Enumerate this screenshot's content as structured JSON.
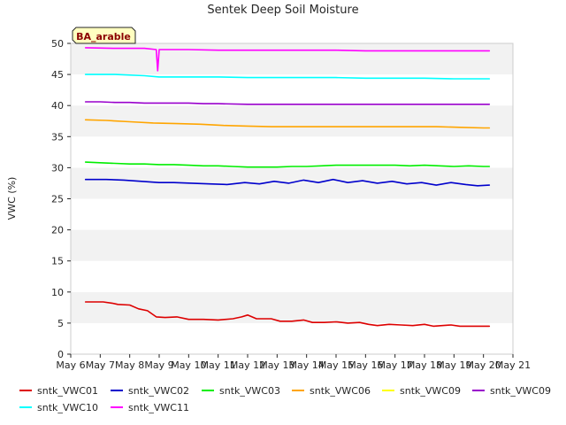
{
  "chart_data": {
    "type": "line",
    "title": "Sentek Deep Soil Moisture",
    "ylabel": "VWC (%)",
    "xlabel": "",
    "badge": "BA_arable",
    "ylim": [
      0,
      50
    ],
    "yticks": [
      0,
      5,
      10,
      15,
      20,
      25,
      30,
      35,
      40,
      45,
      50
    ],
    "xlim": [
      6,
      21
    ],
    "xticks": [
      {
        "value": 6,
        "label": "May 6"
      },
      {
        "value": 7,
        "label": "May 7"
      },
      {
        "value": 8,
        "label": "May 8"
      },
      {
        "value": 9,
        "label": "May 9"
      },
      {
        "value": 10,
        "label": "May 10"
      },
      {
        "value": 11,
        "label": "May 11"
      },
      {
        "value": 12,
        "label": "May 12"
      },
      {
        "value": 13,
        "label": "May 13"
      },
      {
        "value": 14,
        "label": "May 14"
      },
      {
        "value": 15,
        "label": "May 15"
      },
      {
        "value": 16,
        "label": "May 16"
      },
      {
        "value": 17,
        "label": "May 17"
      },
      {
        "value": 18,
        "label": "May 18"
      },
      {
        "value": 19,
        "label": "May 19"
      },
      {
        "value": 20,
        "label": "May 20"
      },
      {
        "value": 21,
        "label": "May 21"
      }
    ],
    "grid_bands": true,
    "legend_placement": "bottom",
    "series": [
      {
        "name": "sntk_VWC01",
        "color": "#dd0000",
        "x": [
          6.5,
          7.1,
          7.4,
          7.6,
          8.0,
          8.3,
          8.6,
          8.9,
          9.2,
          9.6,
          10.0,
          10.5,
          11.0,
          11.5,
          11.8,
          12.0,
          12.3,
          12.8,
          13.1,
          13.5,
          13.9,
          14.2,
          14.6,
          15.0,
          15.4,
          15.8,
          16.1,
          16.4,
          16.8,
          17.2,
          17.6,
          18.0,
          18.3,
          18.6,
          18.9,
          19.2,
          19.5,
          19.8,
          20.1,
          20.2
        ],
        "y": [
          8.4,
          8.4,
          8.2,
          8.0,
          7.9,
          7.3,
          7.0,
          6.0,
          5.9,
          6.0,
          5.6,
          5.6,
          5.5,
          5.7,
          6.0,
          6.3,
          5.7,
          5.7,
          5.3,
          5.3,
          5.5,
          5.1,
          5.1,
          5.2,
          5.0,
          5.1,
          4.8,
          4.6,
          4.8,
          4.7,
          4.6,
          4.8,
          4.5,
          4.6,
          4.7,
          4.5,
          4.5,
          4.5,
          4.5,
          4.5
        ]
      },
      {
        "name": "sntk_VWC02",
        "color": "#0000cc",
        "x": [
          6.5,
          7.2,
          7.8,
          8.4,
          9.0,
          9.5,
          10.1,
          10.7,
          11.3,
          11.9,
          12.4,
          12.9,
          13.4,
          13.9,
          14.4,
          14.9,
          15.4,
          15.9,
          16.4,
          16.9,
          17.4,
          17.9,
          18.4,
          18.9,
          19.4,
          19.8,
          20.2
        ],
        "y": [
          28.1,
          28.1,
          28.0,
          27.8,
          27.6,
          27.6,
          27.5,
          27.4,
          27.3,
          27.6,
          27.4,
          27.8,
          27.5,
          28.0,
          27.6,
          28.1,
          27.6,
          27.9,
          27.5,
          27.8,
          27.4,
          27.6,
          27.2,
          27.6,
          27.3,
          27.1,
          27.2
        ]
      },
      {
        "name": "sntk_VWC03",
        "color": "#00ee00",
        "x": [
          6.5,
          7.0,
          7.5,
          8.0,
          8.5,
          9.0,
          9.5,
          10.0,
          10.5,
          11.0,
          11.5,
          12.0,
          12.5,
          13.0,
          13.5,
          14.0,
          14.5,
          15.0,
          15.5,
          16.0,
          16.5,
          17.0,
          17.5,
          18.0,
          18.5,
          19.0,
          19.5,
          20.0,
          20.2
        ],
        "y": [
          30.9,
          30.8,
          30.7,
          30.6,
          30.6,
          30.5,
          30.5,
          30.4,
          30.3,
          30.3,
          30.2,
          30.1,
          30.1,
          30.1,
          30.2,
          30.2,
          30.3,
          30.4,
          30.4,
          30.4,
          30.4,
          30.4,
          30.3,
          30.4,
          30.3,
          30.2,
          30.3,
          30.2,
          30.2
        ]
      },
      {
        "name": "sntk_VWC06",
        "color": "#ffa500",
        "x": [
          6.5,
          7.2,
          8.0,
          8.8,
          9.6,
          10.4,
          11.2,
          12.0,
          12.8,
          13.6,
          14.4,
          15.2,
          16.0,
          16.8,
          17.6,
          18.4,
          19.2,
          20.0,
          20.2
        ],
        "y": [
          37.7,
          37.6,
          37.4,
          37.2,
          37.1,
          37.0,
          36.8,
          36.7,
          36.6,
          36.6,
          36.6,
          36.6,
          36.6,
          36.6,
          36.6,
          36.6,
          36.5,
          36.4,
          36.4
        ]
      },
      {
        "name": "sntk_VWC09",
        "color": "#ffff00",
        "x": [],
        "y": []
      },
      {
        "name": "sntk_VWC09",
        "color": "#9900cc",
        "x": [
          6.5,
          7.0,
          7.5,
          8.0,
          8.5,
          9.0,
          9.5,
          10.0,
          10.5,
          11.0,
          12.0,
          13.0,
          14.0,
          15.0,
          16.0,
          17.0,
          18.0,
          19.0,
          20.0,
          20.2
        ],
        "y": [
          40.6,
          40.6,
          40.5,
          40.5,
          40.4,
          40.4,
          40.4,
          40.4,
          40.3,
          40.3,
          40.2,
          40.2,
          40.2,
          40.2,
          40.2,
          40.2,
          40.2,
          40.2,
          40.2,
          40.2
        ]
      },
      {
        "name": "sntk_VWC10",
        "color": "#00ffff",
        "x": [
          6.5,
          7.5,
          8.5,
          9.0,
          10.0,
          11.0,
          12.0,
          13.0,
          14.0,
          15.0,
          16.0,
          17.0,
          18.0,
          19.0,
          20.0,
          20.2
        ],
        "y": [
          45.0,
          45.0,
          44.8,
          44.6,
          44.6,
          44.6,
          44.5,
          44.5,
          44.5,
          44.5,
          44.4,
          44.4,
          44.4,
          44.3,
          44.3,
          44.3
        ]
      },
      {
        "name": "sntk_VWC11",
        "color": "#ff00ff",
        "x": [
          6.5,
          7.5,
          8.5,
          8.9,
          8.95,
          9.0,
          9.05,
          10.0,
          11.0,
          12.0,
          13.0,
          14.0,
          15.0,
          16.0,
          17.0,
          18.0,
          19.0,
          20.0,
          20.2
        ],
        "y": [
          49.3,
          49.2,
          49.2,
          49.0,
          45.6,
          49.0,
          49.0,
          49.0,
          48.9,
          48.9,
          48.9,
          48.9,
          48.9,
          48.8,
          48.8,
          48.8,
          48.8,
          48.8,
          48.8
        ]
      }
    ]
  }
}
